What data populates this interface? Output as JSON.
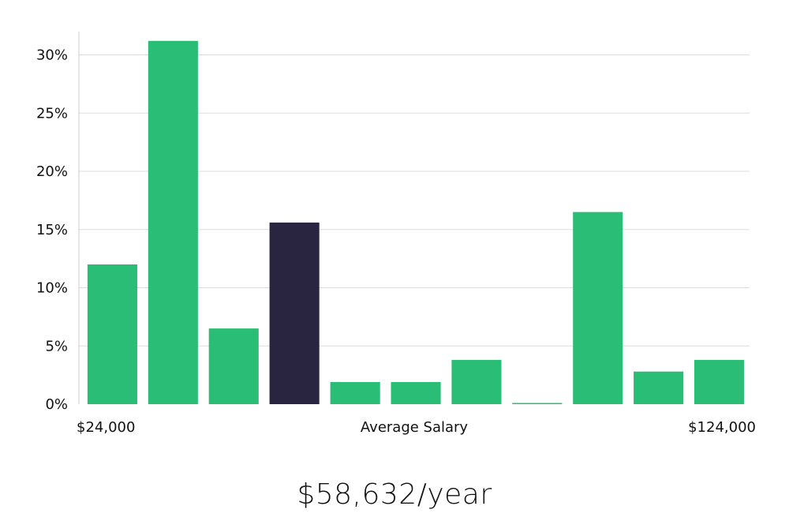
{
  "salary_figure": "$58,632/year",
  "colors": {
    "bar": "#2abd75",
    "highlight": "#29243f",
    "grid": "#dddddd",
    "axis": "#cccccc"
  },
  "chart_data": {
    "type": "bar",
    "xlabel": "Average Salary",
    "x_range_labels": [
      "$24,000",
      "$124,000"
    ],
    "ylim": [
      0,
      32
    ],
    "yticks": [
      0,
      5,
      10,
      15,
      20,
      25,
      30
    ],
    "ytick_labels": [
      "0%",
      "5%",
      "10%",
      "15%",
      "20%",
      "25%",
      "30%"
    ],
    "grid": true,
    "values": [
      12,
      31.2,
      6.5,
      15.6,
      1.9,
      1.9,
      3.8,
      0.1,
      16.5,
      2.8,
      3.8
    ],
    "highlight_index": 3
  }
}
